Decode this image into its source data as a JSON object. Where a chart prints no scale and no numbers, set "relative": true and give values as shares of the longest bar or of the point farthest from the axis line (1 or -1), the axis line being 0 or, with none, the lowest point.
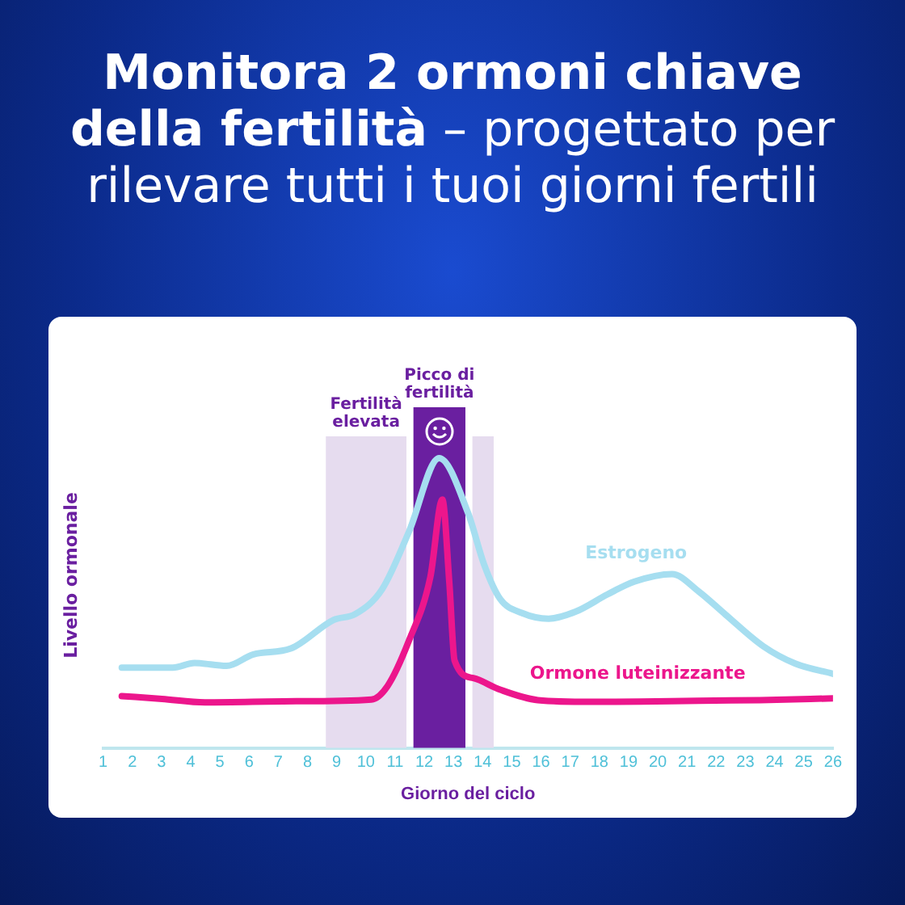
{
  "chart_data": {
    "type": "line",
    "title": "Monitora 2 ormoni chiave della fertilità",
    "subtitle": "– progettato per rilevare tutti i tuoi giorni fertili",
    "xlabel": "Giorno del ciclo",
    "ylabel": "Livello ormonale",
    "relative": true,
    "legend": false,
    "marker": "none",
    "line_style": "solid",
    "xlim": [
      1,
      26
    ],
    "xticks": [
      1,
      2,
      3,
      4,
      5,
      6,
      7,
      8,
      9,
      10,
      11,
      12,
      13,
      14,
      15,
      16,
      17,
      18,
      19,
      20,
      21,
      22,
      23,
      24,
      25,
      26
    ],
    "series": [
      {
        "name": "Estrogeno",
        "color": "#a6def0",
        "x": [
          1.64,
          3.39,
          4.13,
          5.23,
          6.15,
          7.43,
          8.9,
          9.64,
          10.56,
          11.48,
          12.51,
          13.5,
          14.05,
          14.6,
          15.34,
          16.26,
          17.18,
          18.28,
          19.2,
          20.49,
          21.4,
          22.32,
          23.61,
          24.71,
          26
        ],
        "values": [
          0.277,
          0.277,
          0.293,
          0.283,
          0.323,
          0.343,
          0.442,
          0.462,
          0.548,
          0.747,
          1,
          0.811,
          0.633,
          0.514,
          0.466,
          0.446,
          0.47,
          0.53,
          0.574,
          0.6,
          0.54,
          0.46,
          0.351,
          0.291,
          0.256
        ]
      },
      {
        "name": "Ormone luteinizzante",
        "color": "#ec168c",
        "x": [
          1.64,
          3.02,
          4.49,
          7.62,
          10.19,
          10.74,
          11.48,
          12.21,
          12.62,
          12.86,
          13.04,
          13.68,
          14.6,
          15.89,
          17.73,
          19.4,
          21.4,
          23.5,
          26
        ],
        "values": [
          0.179,
          0.169,
          0.157,
          0.161,
          0.167,
          0.213,
          0.371,
          0.59,
          0.857,
          0.57,
          0.301,
          0.241,
          0.201,
          0.165,
          0.159,
          0.16,
          0.163,
          0.165,
          0.171
        ]
      }
    ],
    "bands": [
      {
        "axis": "x",
        "from": 8.63,
        "to": 11.39,
        "label": "Fertilità elevata",
        "color": "#e6dcef"
      },
      {
        "axis": "x",
        "from": 11.63,
        "to": 13.41,
        "label": "Picco di fertilità",
        "color": "#6a1fa0"
      },
      {
        "axis": "x",
        "from": 13.65,
        "to": 14.38,
        "label": null,
        "color": "#e6dcef"
      }
    ]
  }
}
